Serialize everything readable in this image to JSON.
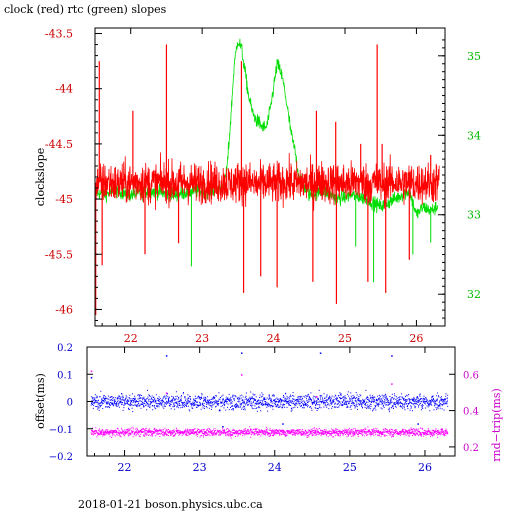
{
  "page": {
    "title": "clock (red) rtc (green) slopes",
    "footer": "2018-01-21 boson.physics.ubc.ca"
  },
  "colors": {
    "clock": "#ff0000",
    "rtc": "#00dd00",
    "offset": "#0000ff",
    "rndtrip": "#ff00ff",
    "axis_text_left_top": "#cc0000",
    "axis_text_right_top": "#00bb00",
    "axis_text_bottom": "#0000cc",
    "axis_text_right_bottom": "#cc00cc"
  },
  "chart_data": [
    {
      "type": "line",
      "title": "clock (red) rtc (green) slopes",
      "ylabel": "clockslope",
      "xlim": [
        21.5,
        26.4
      ],
      "ylim": [
        -46.15,
        -43.45
      ],
      "x_ticks": [
        22,
        23,
        24,
        25,
        26
      ],
      "x_tick_labels": [
        "22",
        "23",
        "24",
        "25",
        "26"
      ],
      "y_ticks": [
        -43.5,
        -44,
        -44.5,
        -45,
        -45.5,
        -46
      ],
      "y_tick_labels": [
        "-43.5",
        "-44",
        "-44.5",
        "-45",
        "-45.5",
        "-46"
      ],
      "y2lim": [
        31.6,
        35.35
      ],
      "y2_ticks": [
        32,
        33,
        34,
        35
      ],
      "y2_tick_labels": [
        "32",
        "33",
        "34",
        "35"
      ],
      "grid": false,
      "series": [
        {
          "name": "clock",
          "axis": "left",
          "color": "#ff0000",
          "x": [
            21.5,
            21.6,
            21.7,
            21.8,
            21.9,
            22.0,
            22.1,
            22.2,
            22.3,
            22.4,
            22.5,
            22.6,
            22.7,
            22.8,
            22.9,
            23.0,
            23.1,
            23.2,
            23.3,
            23.4,
            23.5,
            23.6,
            23.7,
            23.8,
            23.9,
            24.0,
            24.1,
            24.2,
            24.3,
            24.4,
            24.5,
            24.6,
            24.7,
            24.8,
            24.9,
            25.0,
            25.1,
            25.2,
            25.3,
            25.4,
            25.5,
            25.6,
            25.7,
            25.8,
            25.9,
            26.0,
            26.1,
            26.2,
            26.3
          ],
          "center": [
            -44.85,
            -44.86,
            -44.84,
            -44.87,
            -44.85,
            -44.86,
            -44.84,
            -44.85,
            -44.86,
            -44.85,
            -44.84,
            -44.86,
            -44.85,
            -44.85,
            -44.86,
            -44.85,
            -44.84,
            -44.86,
            -44.85,
            -44.86,
            -44.85,
            -44.84,
            -44.86,
            -44.87,
            -44.85,
            -44.86,
            -44.85,
            -44.84,
            -44.86,
            -44.85,
            -44.86,
            -44.85,
            -44.84,
            -44.86,
            -44.85,
            -44.86,
            -44.85,
            -44.84,
            -44.86,
            -44.85,
            -44.86,
            -44.85,
            -44.84,
            -44.86,
            -44.85,
            -44.86,
            -44.85,
            -44.86,
            -44.85
          ],
          "spread": 0.2,
          "spikes": [
            {
              "x": 21.51,
              "y": -46.05
            },
            {
              "x": 21.56,
              "y": -43.75
            },
            {
              "x": 21.6,
              "y": -45.6
            },
            {
              "x": 22.03,
              "y": -44.2
            },
            {
              "x": 22.2,
              "y": -45.5
            },
            {
              "x": 22.5,
              "y": -43.6
            },
            {
              "x": 22.67,
              "y": -45.4
            },
            {
              "x": 23.55,
              "y": -43.75
            },
            {
              "x": 23.58,
              "y": -45.85
            },
            {
              "x": 23.82,
              "y": -45.7
            },
            {
              "x": 24.05,
              "y": -45.8
            },
            {
              "x": 24.55,
              "y": -45.75
            },
            {
              "x": 24.6,
              "y": -44.2
            },
            {
              "x": 24.87,
              "y": -44.3
            },
            {
              "x": 24.88,
              "y": -45.95
            },
            {
              "x": 25.22,
              "y": -44.5
            },
            {
              "x": 25.32,
              "y": -45.75
            },
            {
              "x": 25.45,
              "y": -43.6
            },
            {
              "x": 25.52,
              "y": -44.5
            },
            {
              "x": 25.57,
              "y": -45.85
            },
            {
              "x": 25.9,
              "y": -45.55
            },
            {
              "x": 26.2,
              "y": -44.6
            }
          ]
        },
        {
          "name": "rtc",
          "axis": "right",
          "color": "#00dd00",
          "x": [
            21.5,
            21.6,
            21.8,
            22.0,
            22.3,
            22.6,
            22.9,
            23.1,
            23.3,
            23.35,
            23.4,
            23.45,
            23.5,
            23.55,
            23.6,
            23.65,
            23.7,
            23.75,
            23.8,
            23.85,
            23.9,
            23.95,
            24.0,
            24.05,
            24.1,
            24.15,
            24.2,
            24.25,
            24.3,
            24.35,
            24.4,
            24.5,
            24.7,
            24.9,
            25.1,
            25.3,
            25.5,
            25.7,
            25.9,
            26.0,
            26.1,
            26.2,
            26.3
          ],
          "y": [
            33.3,
            33.25,
            33.3,
            33.25,
            33.3,
            33.25,
            33.3,
            33.3,
            33.35,
            33.6,
            34.2,
            34.9,
            35.2,
            35.1,
            34.8,
            34.5,
            34.3,
            34.2,
            34.15,
            34.1,
            34.1,
            34.3,
            34.6,
            34.9,
            34.8,
            34.6,
            34.3,
            34.0,
            33.8,
            33.5,
            33.4,
            33.25,
            33.3,
            33.2,
            33.25,
            33.2,
            33.1,
            33.2,
            33.3,
            33.0,
            33.1,
            33.05,
            33.1
          ],
          "spread": 0.15,
          "spikes": [
            {
              "x": 22.85,
              "y": 32.35
            },
            {
              "x": 25.4,
              "y": 32.15
            },
            {
              "x": 25.95,
              "y": 32.5
            },
            {
              "x": 26.2,
              "y": 32.65
            },
            {
              "x": 25.15,
              "y": 32.6
            }
          ]
        }
      ]
    },
    {
      "type": "scatter",
      "ylabel": "offset(ms)",
      "y2label": "rnd−trip(ms)",
      "xlim": [
        21.5,
        26.4
      ],
      "ylim": [
        -0.2,
        0.2
      ],
      "x_ticks": [
        22,
        23,
        24,
        25,
        26
      ],
      "x_tick_labels": [
        "22",
        "23",
        "24",
        "25",
        "26"
      ],
      "y_ticks": [
        0.2,
        0.1,
        0,
        -0.1,
        -0.2
      ],
      "y_tick_labels": [
        "0.2",
        "0.1",
        "0",
        "−0.1",
        "−0.2"
      ],
      "y2lim": [
        0.15,
        0.75
      ],
      "y2_ticks": [
        0.2,
        0.4,
        0.6
      ],
      "y2_tick_labels": [
        "0.2",
        "0.4",
        "0.6"
      ],
      "grid": false,
      "series": [
        {
          "name": "offset",
          "axis": "left",
          "color": "#0000ff",
          "center": 0.0,
          "spread": 0.035,
          "outliers": [
            {
              "x": 21.55,
              "y": 0.09
            },
            {
              "x": 22.55,
              "y": 0.17
            },
            {
              "x": 23.3,
              "y": -0.09
            },
            {
              "x": 23.55,
              "y": 0.18
            },
            {
              "x": 24.1,
              "y": -0.08
            },
            {
              "x": 24.6,
              "y": 0.18
            },
            {
              "x": 25.55,
              "y": 0.17
            },
            {
              "x": 25.9,
              "y": -0.08
            }
          ]
        },
        {
          "name": "rnd-trip",
          "axis": "right",
          "color": "#ff00ff",
          "center": 0.28,
          "spread": 0.025,
          "outliers": [
            {
              "x": 21.55,
              "y": 0.62
            },
            {
              "x": 22.55,
              "y": 0.5
            },
            {
              "x": 23.55,
              "y": 0.6
            },
            {
              "x": 24.55,
              "y": 0.48
            },
            {
              "x": 25.55,
              "y": 0.55
            }
          ]
        }
      ]
    }
  ]
}
